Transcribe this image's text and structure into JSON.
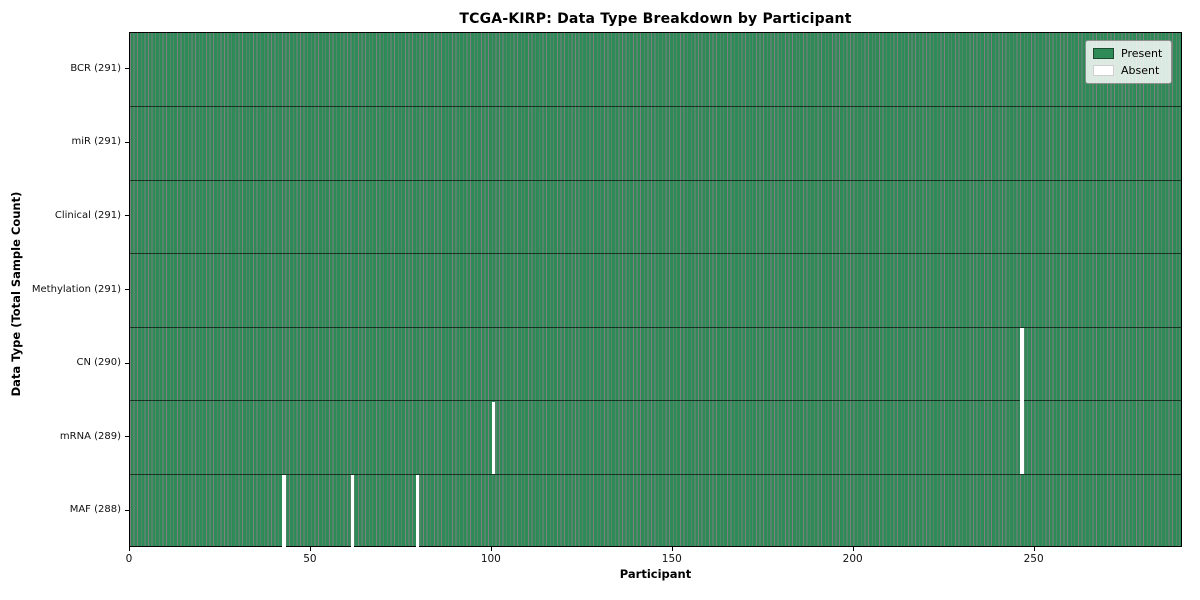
{
  "chart_data": {
    "type": "heatmap",
    "title": "TCGA-KIRP: Data Type Breakdown by Participant",
    "xlabel": "Participant",
    "ylabel": "Data Type (Total Sample Count)",
    "n_participants": 291,
    "xlim": [
      0,
      291
    ],
    "xticks": [
      0,
      50,
      100,
      150,
      200,
      250
    ],
    "grid": false,
    "rows": [
      {
        "label": "BCR (291)",
        "name": "BCR",
        "present_count": 291,
        "absent_participants": []
      },
      {
        "label": "miR (291)",
        "name": "miR",
        "present_count": 291,
        "absent_participants": []
      },
      {
        "label": "Clinical (291)",
        "name": "Clinical",
        "present_count": 291,
        "absent_participants": []
      },
      {
        "label": "Methylation (291)",
        "name": "Methylation",
        "present_count": 291,
        "absent_participants": []
      },
      {
        "label": "CN (290)",
        "name": "CN",
        "present_count": 290,
        "absent_participants": [
          246
        ]
      },
      {
        "label": "mRNA (289)",
        "name": "mRNA",
        "present_count": 289,
        "absent_participants": [
          100,
          246
        ]
      },
      {
        "label": "MAF (288)",
        "name": "MAF",
        "present_count": 288,
        "absent_participants": [
          42,
          61,
          79
        ]
      }
    ],
    "legend": {
      "position": "upper right",
      "entries": [
        {
          "label": "Present",
          "color": "#2e8b57"
        },
        {
          "label": "Absent",
          "color": "#ffffff"
        }
      ]
    },
    "colors": {
      "present": "#2e8b57",
      "absent": "#ffffff",
      "bar_edge": "rgba(0,0,0,0.5)",
      "row_divider": "rgba(0,0,0,0.62)",
      "axis": "#000000",
      "background": "#ffffff"
    }
  }
}
